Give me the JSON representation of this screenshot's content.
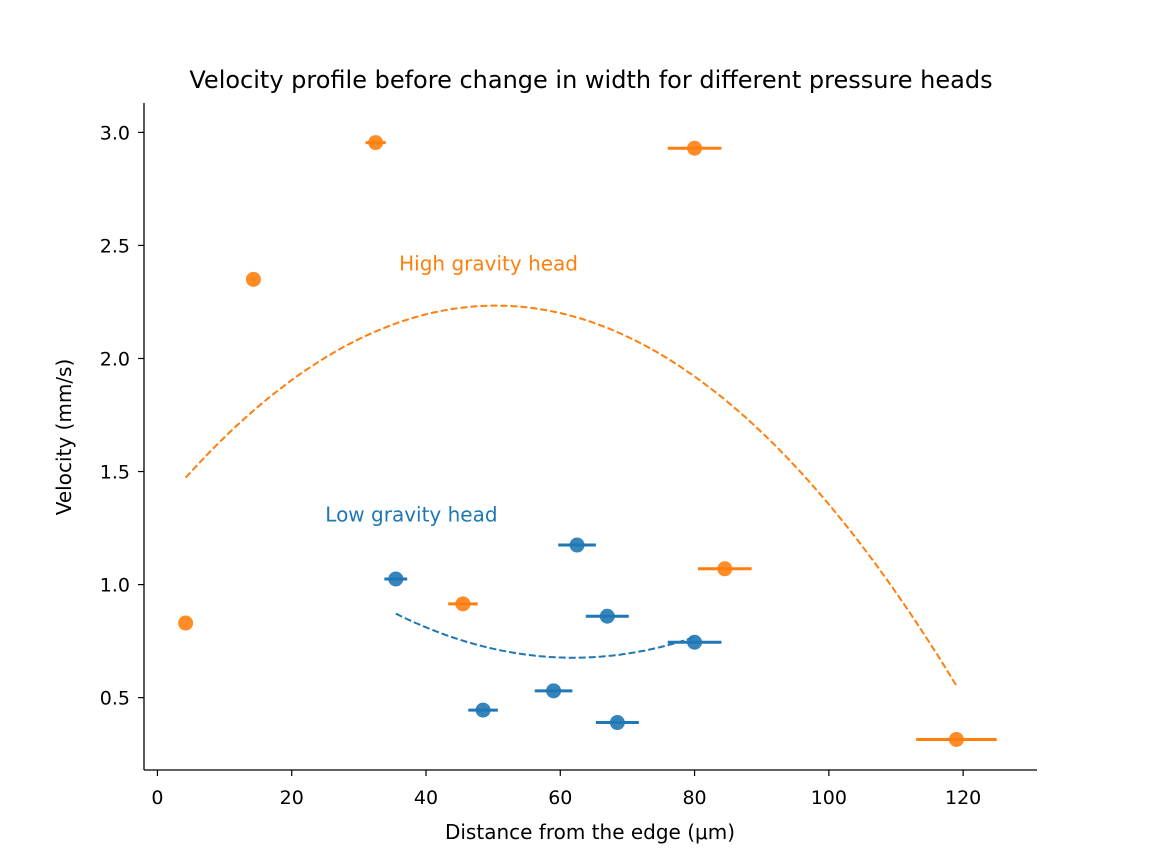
{
  "chart_data": {
    "type": "scatter",
    "title": "Velocity profile before change in width for different pressure heads",
    "xlabel": "Distance from the edge (μm)",
    "ylabel": "Velocity (mm/s)",
    "xlim": [
      -2,
      131
    ],
    "ylim": [
      0.18,
      3.13
    ],
    "xticks": [
      0,
      20,
      40,
      60,
      80,
      100,
      120
    ],
    "yticks": [
      0.5,
      1.0,
      1.5,
      2.0,
      2.5,
      3.0
    ],
    "xtick_labels": [
      "0",
      "20",
      "40",
      "60",
      "80",
      "100",
      "120"
    ],
    "ytick_labels": [
      "0.5",
      "1.0",
      "1.5",
      "2.0",
      "2.5",
      "3.0"
    ],
    "grid": false,
    "legend": "none",
    "series": [
      {
        "color": "#ff7f0e",
        "points": [
          {
            "x": 4.2,
            "y": 0.83,
            "xerr": 0.0
          },
          {
            "x": 14.3,
            "y": 2.35,
            "xerr": 0.3
          },
          {
            "x": 32.5,
            "y": 2.955,
            "xerr": 1.5
          },
          {
            "x": 45.5,
            "y": 0.915,
            "xerr": 2.2
          },
          {
            "x": 80.0,
            "y": 2.93,
            "xerr": 4.0
          },
          {
            "x": 84.5,
            "y": 1.07,
            "xerr": 4.0
          },
          {
            "x": 119.0,
            "y": 0.315,
            "xerr": 6.0
          }
        ],
        "fit": {
          "type": "quadratic",
          "coeffs": [
            -0.000357,
            0.03597,
            1.3278
          ],
          "x_range": [
            4.2,
            119.0
          ]
        }
      },
      {
        "color": "#1f77b4",
        "points": [
          {
            "x": 35.5,
            "y": 1.025,
            "xerr": 1.7
          },
          {
            "x": 48.5,
            "y": 0.445,
            "xerr": 2.2
          },
          {
            "x": 59.0,
            "y": 0.53,
            "xerr": 2.8
          },
          {
            "x": 62.5,
            "y": 1.175,
            "xerr": 2.8
          },
          {
            "x": 67.0,
            "y": 0.86,
            "xerr": 3.2
          },
          {
            "x": 68.5,
            "y": 0.39,
            "xerr": 3.2
          },
          {
            "x": 80.0,
            "y": 0.745,
            "xerr": 4.0
          }
        ],
        "fit": {
          "type": "quadratic",
          "coeffs": [
            0.000279,
            -0.03456,
            1.7469
          ],
          "x_range": [
            35.5,
            80.0
          ]
        }
      }
    ],
    "annotations": [
      {
        "text": "High gravity head",
        "x": 36.0,
        "y": 2.42,
        "color": "#ff7f0e"
      },
      {
        "text": "Low gravity head",
        "x": 25.0,
        "y": 1.31,
        "color": "#1f77b4"
      }
    ]
  }
}
